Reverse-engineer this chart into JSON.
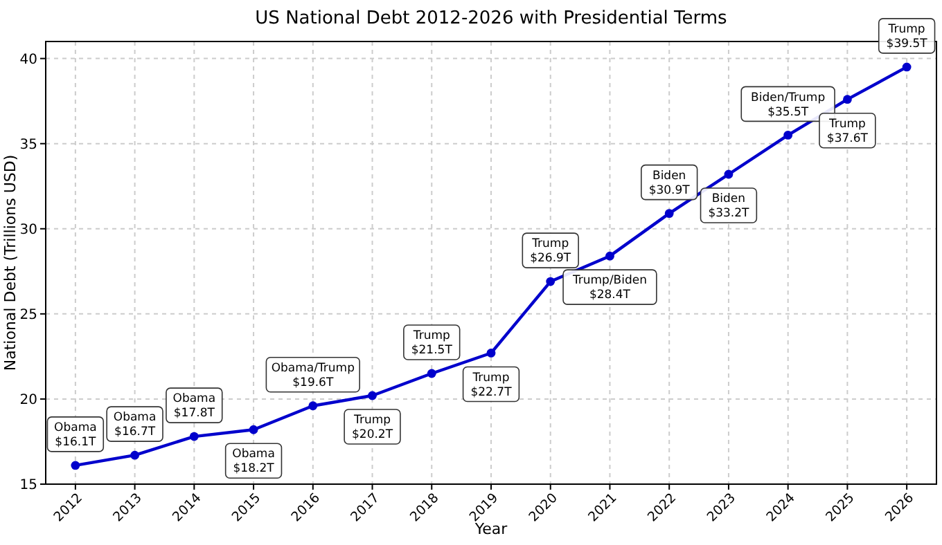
{
  "chart_data": {
    "type": "line",
    "title": "US National Debt 2012-2026 with Presidential Terms",
    "xlabel": "Year",
    "ylabel": "National Debt (Trillions USD)",
    "categories": [
      "2012",
      "2013",
      "2014",
      "2015",
      "2016",
      "2017",
      "2018",
      "2019",
      "2020",
      "2021",
      "2022",
      "2023",
      "2024",
      "2025",
      "2026"
    ],
    "series": [
      {
        "color": "#0000cc",
        "values": [
          16.1,
          16.7,
          17.8,
          18.2,
          19.6,
          20.2,
          21.5,
          22.7,
          26.9,
          28.4,
          30.9,
          33.2,
          35.5,
          37.6,
          39.5
        ]
      }
    ],
    "ylim": [
      15,
      41
    ],
    "yticks": [
      15,
      20,
      25,
      30,
      35,
      40
    ],
    "grid": true,
    "marker": "circle",
    "line_style": "solid",
    "annotations": [
      {
        "text": "Obama\n$16.1T",
        "x": "2012",
        "y": 16.1
      },
      {
        "text": "Obama\n$16.7T",
        "x": "2013",
        "y": 16.7
      },
      {
        "text": "Obama\n$17.8T",
        "x": "2014",
        "y": 17.8
      },
      {
        "text": "Obama\n$18.2T",
        "x": "2015",
        "y": 18.2
      },
      {
        "text": "Obama/Trump\n$19.6T",
        "x": "2016",
        "y": 19.6
      },
      {
        "text": "Trump\n$20.2T",
        "x": "2017",
        "y": 20.2
      },
      {
        "text": "Trump\n$21.5T",
        "x": "2018",
        "y": 21.5
      },
      {
        "text": "Trump\n$22.7T",
        "x": "2019",
        "y": 22.7
      },
      {
        "text": "Trump\n$26.9T",
        "x": "2020",
        "y": 26.9
      },
      {
        "text": "Trump/Biden\n$28.4T",
        "x": "2021",
        "y": 28.4
      },
      {
        "text": "Biden\n$30.9T",
        "x": "2022",
        "y": 30.9
      },
      {
        "text": "Biden\n$33.2T",
        "x": "2023",
        "y": 33.2
      },
      {
        "text": "Biden/Trump\n$35.5T",
        "x": "2024",
        "y": 35.5
      },
      {
        "text": "Trump\n$37.6T",
        "x": "2025",
        "y": 37.6
      },
      {
        "text": "Trump\n$39.5T",
        "x": "2026",
        "y": 39.5
      }
    ]
  }
}
